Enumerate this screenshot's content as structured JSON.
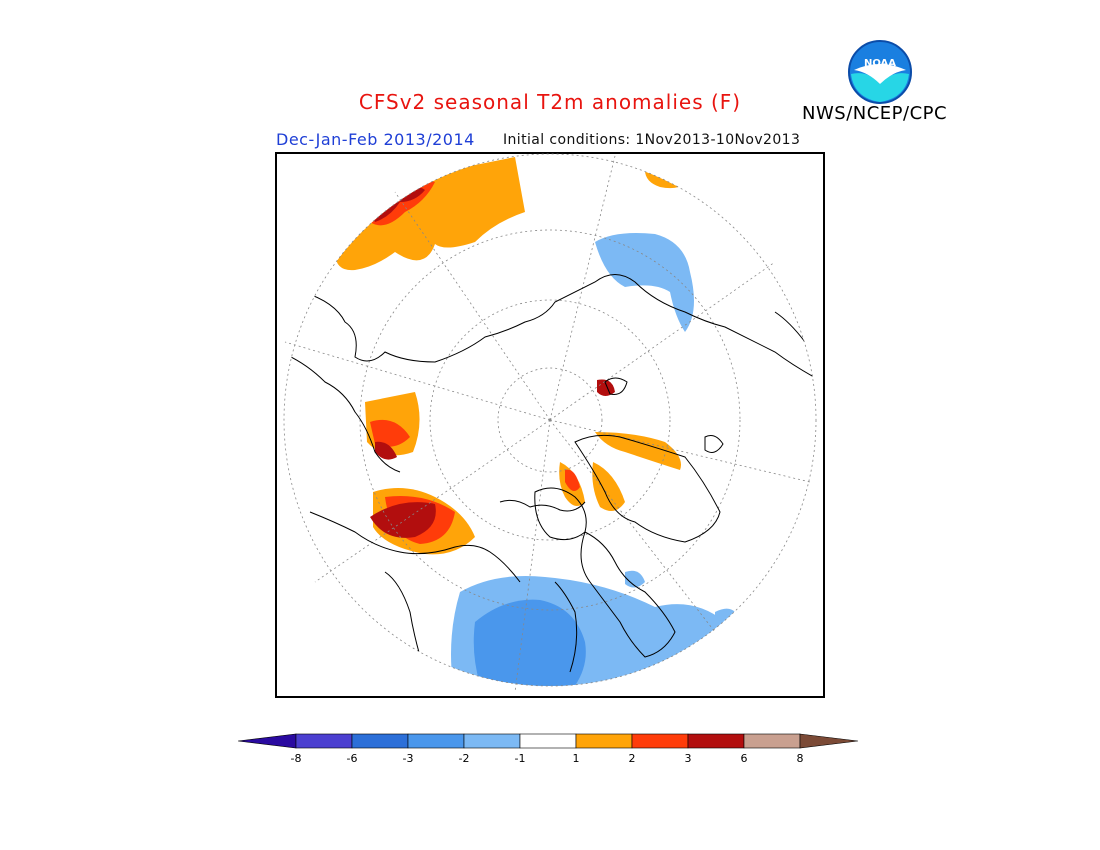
{
  "title": "CFSv2 seasonal T2m anomalies (F)",
  "organization": "NWS/NCEP/CPC",
  "logo_text": "NOAA",
  "season": "Dec-Jan-Feb 2013/2014",
  "initial_conditions": "Initial conditions: 1Nov2013-10Nov2013",
  "colorbar": {
    "ticks": [
      "-8",
      "-6",
      "-3",
      "-2",
      "-1",
      "1",
      "2",
      "3",
      "6",
      "8"
    ],
    "colors": [
      "#2a0aa0",
      "#4b3fd0",
      "#2c6fd8",
      "#4a97ec",
      "#7cb9f4",
      "#ffffff",
      "#ffa409",
      "#ff3c0a",
      "#b20e0e",
      "#c9a090",
      "#7b4a36"
    ]
  },
  "colors": {
    "title": "#e8140f",
    "season": "#1f3fd6",
    "warm1": "#ffa409",
    "warm2": "#ff3c0a",
    "warm3": "#b20e0e",
    "cool1": "#7cb9f4",
    "cool2": "#4a97ec"
  }
}
